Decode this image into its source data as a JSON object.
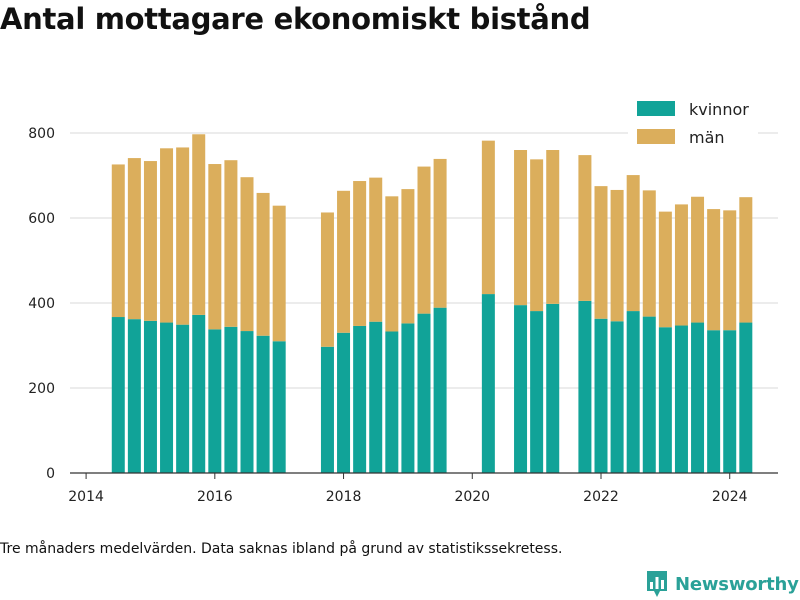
{
  "title": "Antal mottagare ekonomiskt bistånd",
  "footnote": "Tre månaders medelvärden. Data saknas ibland på grund av statistikssekretess.",
  "brand": {
    "name": "Newsworthy",
    "icon": "bar-chart-logo-icon",
    "color": "#2aa198"
  },
  "colors": {
    "kvinnor": "#11a398",
    "man": "#dbae5c",
    "grid": "#d9d9d9",
    "axis": "#333333"
  },
  "chart_data": {
    "type": "bar",
    "stacked": true,
    "xlim": [
      2013.75,
      2024.75
    ],
    "ylim": [
      0,
      800
    ],
    "x_ticks": [
      "2014",
      "2016",
      "2018",
      "2020",
      "2022",
      "2024"
    ],
    "y_ticks": [
      "0",
      "200",
      "400",
      "600",
      "800"
    ],
    "grid": true,
    "legend_position": "top-right",
    "x": [
      2014.5,
      2014.75,
      2015.0,
      2015.25,
      2015.5,
      2015.75,
      2016.0,
      2016.25,
      2016.5,
      2016.75,
      2017.0,
      2017.75,
      2018.0,
      2018.25,
      2018.5,
      2018.75,
      2019.0,
      2019.25,
      2019.5,
      2019.75,
      2020.25,
      2020.75,
      2021.0,
      2021.25,
      2021.75,
      2022.0,
      2022.25,
      2022.5,
      2022.75,
      2023.0,
      2023.25,
      2023.5,
      2023.75,
      2024.0,
      2024.25
    ],
    "series": [
      {
        "name": "kvinnor",
        "color": "#11a398",
        "values": [
          367,
          362,
          358,
          354,
          349,
          372,
          338,
          344,
          334,
          323,
          310,
          297,
          330,
          346,
          356,
          333,
          352,
          375,
          389,
          null,
          421,
          395,
          381,
          398,
          405,
          363,
          357,
          381,
          368,
          343,
          347,
          354,
          336,
          336,
          354
        ]
      },
      {
        "name": "män",
        "color": "#dbae5c",
        "values": [
          359,
          379,
          376,
          410,
          417,
          425,
          389,
          392,
          362,
          336,
          319,
          316,
          334,
          341,
          339,
          318,
          316,
          346,
          350,
          null,
          361,
          365,
          357,
          362,
          343,
          312,
          309,
          320,
          297,
          272,
          285,
          296,
          285,
          282,
          295
        ]
      }
    ]
  }
}
